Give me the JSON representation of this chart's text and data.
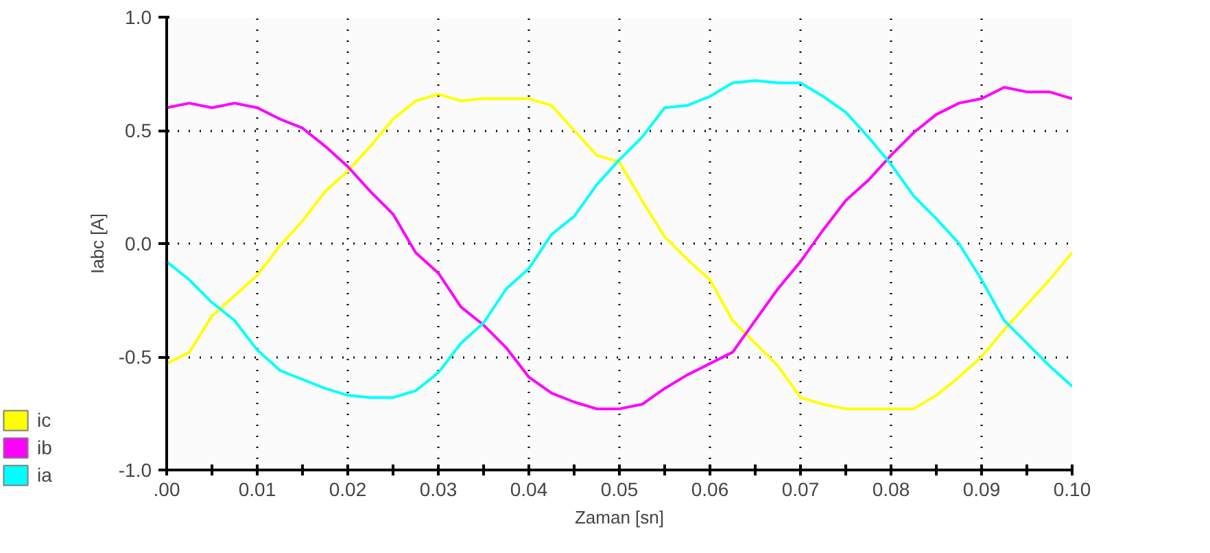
{
  "chart_data": {
    "type": "line",
    "xlabel": "Zaman [sn]",
    "ylabel": "Iabc [A]",
    "x": [
      0,
      0.0025,
      0.005,
      0.0075,
      0.01,
      0.0125,
      0.015,
      0.0175,
      0.02,
      0.0225,
      0.025,
      0.0275,
      0.03,
      0.0325,
      0.035,
      0.0375,
      0.04,
      0.0425,
      0.045,
      0.0475,
      0.05,
      0.0525,
      0.055,
      0.0575,
      0.06,
      0.0625,
      0.065,
      0.0675,
      0.07,
      0.0725,
      0.075,
      0.0775,
      0.08,
      0.0825,
      0.085,
      0.0875,
      0.09,
      0.0925,
      0.095,
      0.0975,
      0.1
    ],
    "series": [
      {
        "name": "ic",
        "color": "#ffff00",
        "values": [
          -0.53,
          -0.48,
          -0.32,
          -0.23,
          -0.14,
          -0.01,
          0.1,
          0.23,
          0.32,
          0.43,
          0.55,
          0.63,
          0.66,
          0.63,
          0.64,
          0.64,
          0.64,
          0.61,
          0.5,
          0.39,
          0.36,
          0.19,
          0.03,
          -0.07,
          -0.16,
          -0.34,
          -0.44,
          -0.54,
          -0.68,
          -0.71,
          -0.73,
          -0.73,
          -0.73,
          -0.73,
          -0.67,
          -0.59,
          -0.5,
          -0.38,
          -0.27,
          -0.16,
          -0.04
        ]
      },
      {
        "name": "ib",
        "color": "#ff00ff",
        "values": [
          0.6,
          0.62,
          0.6,
          0.62,
          0.6,
          0.55,
          0.51,
          0.43,
          0.34,
          0.23,
          0.13,
          -0.04,
          -0.13,
          -0.28,
          -0.36,
          -0.46,
          -0.59,
          -0.66,
          -0.7,
          -0.73,
          -0.73,
          -0.71,
          -0.64,
          -0.58,
          -0.53,
          -0.48,
          -0.34,
          -0.2,
          -0.08,
          0.06,
          0.19,
          0.28,
          0.39,
          0.49,
          0.57,
          0.62,
          0.64,
          0.69,
          0.67,
          0.67,
          0.64
        ]
      },
      {
        "name": "ia",
        "color": "#00ffff",
        "values": [
          -0.08,
          -0.16,
          -0.26,
          -0.34,
          -0.47,
          -0.56,
          -0.6,
          -0.64,
          -0.67,
          -0.68,
          -0.68,
          -0.65,
          -0.57,
          -0.44,
          -0.35,
          -0.2,
          -0.11,
          0.04,
          0.12,
          0.26,
          0.37,
          0.47,
          0.6,
          0.61,
          0.65,
          0.71,
          0.72,
          0.71,
          0.71,
          0.65,
          0.58,
          0.47,
          0.35,
          0.21,
          0.11,
          0.0,
          -0.16,
          -0.34,
          -0.44,
          -0.54,
          -0.63
        ]
      }
    ],
    "xlim": [
      0,
      0.1
    ],
    "ylim": [
      -1,
      1
    ],
    "xticks": [
      {
        "value": 0,
        "label": ".00"
      },
      {
        "value": 0.005,
        "label": null
      },
      {
        "value": 0.01,
        "label": "0.01"
      },
      {
        "value": 0.015,
        "label": null
      },
      {
        "value": 0.02,
        "label": "0.02"
      },
      {
        "value": 0.025,
        "label": null
      },
      {
        "value": 0.03,
        "label": "0.03"
      },
      {
        "value": 0.035,
        "label": null
      },
      {
        "value": 0.04,
        "label": "0.04"
      },
      {
        "value": 0.045,
        "label": null
      },
      {
        "value": 0.05,
        "label": "0.05"
      },
      {
        "value": 0.055,
        "label": null
      },
      {
        "value": 0.06,
        "label": "0.06"
      },
      {
        "value": 0.065,
        "label": null
      },
      {
        "value": 0.07,
        "label": "0.07"
      },
      {
        "value": 0.075,
        "label": null
      },
      {
        "value": 0.08,
        "label": "0.08"
      },
      {
        "value": 0.085,
        "label": null
      },
      {
        "value": 0.09,
        "label": "0.09"
      },
      {
        "value": 0.095,
        "label": null
      },
      {
        "value": 0.1,
        "label": "0.10"
      }
    ],
    "yticks": [
      {
        "value": -1,
        "label": "-1.0"
      },
      {
        "value": -0.5,
        "label": "-0.5"
      },
      {
        "value": 0,
        "label": "0.0"
      },
      {
        "value": 0.5,
        "label": "0.5"
      },
      {
        "value": 1,
        "label": "1.0"
      }
    ],
    "grid": true,
    "legend": "bottom left",
    "line_style": "solid",
    "marker": "none"
  }
}
